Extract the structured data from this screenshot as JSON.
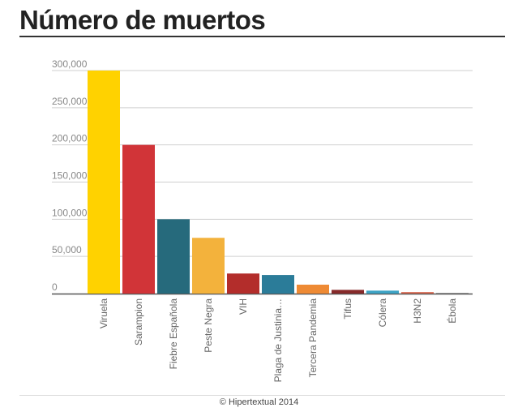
{
  "header": {
    "title": "Número de muertos"
  },
  "footer": {
    "credit": "© Hipertextual 2014"
  },
  "chart_data": {
    "type": "bar",
    "title": "Número de muertos",
    "xlabel": "",
    "ylabel": "",
    "ylim": [
      0,
      300000
    ],
    "yticks": [
      0,
      50000,
      100000,
      150000,
      200000,
      250000,
      300000
    ],
    "ytick_labels": [
      "0",
      "50,000",
      "100,000",
      "150,000",
      "200,000",
      "250,000",
      "300,000"
    ],
    "grid": true,
    "categories": [
      "Viruela",
      "Sarampion",
      "Fiebre Española",
      "Peste Negra",
      "VIH",
      "Plaga de Justinia…",
      "Tercera Pandemia",
      "Tifus",
      "Cólera",
      "H3N2",
      "Ébola"
    ],
    "values": [
      300000,
      200000,
      100000,
      75000,
      27000,
      25000,
      12000,
      5000,
      4000,
      2000,
      1000
    ],
    "colors": [
      "#FFD200",
      "#D13438",
      "#266A7C",
      "#F3B23C",
      "#B32D2B",
      "#2B7C99",
      "#EE8A34",
      "#862A2A",
      "#3DA3C4",
      "#D5664F",
      "#8F8F8F"
    ]
  }
}
